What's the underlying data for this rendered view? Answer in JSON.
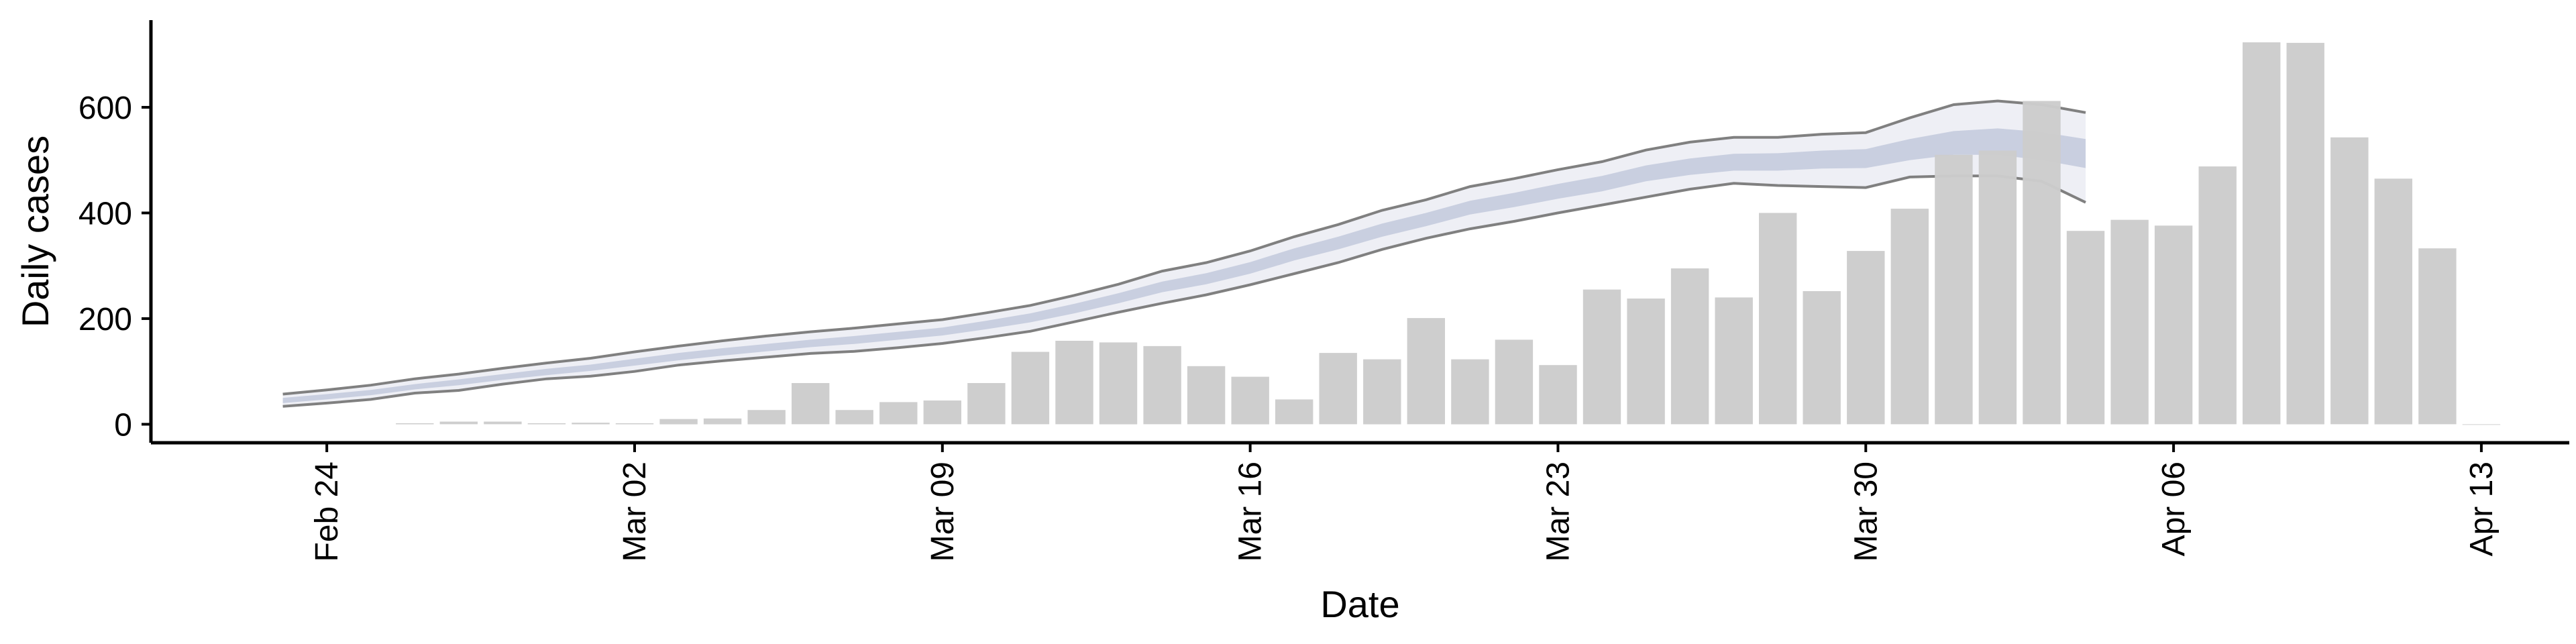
{
  "chart_data": {
    "type": "bar",
    "title": "",
    "xlabel": "Date",
    "ylabel": "Daily cases",
    "x_ticks": [
      "Feb 24",
      "Mar 02",
      "Mar 09",
      "Mar 16",
      "Mar 23",
      "Mar 30",
      "Apr 06",
      "Apr 13"
    ],
    "y_ticks": [
      0,
      200,
      400,
      600
    ],
    "xlim": [
      "2020-02-20",
      "2020-04-15"
    ],
    "ylim": [
      -35,
      765
    ],
    "grid": false,
    "legend": "none",
    "colors": {
      "bars": "#cccccc",
      "band_outer": "#eeeff5",
      "band_inner": "#c9cfe0",
      "band_edge": "#808080",
      "axis": "#000000"
    },
    "bars": {
      "name": "Daily cases",
      "dates": [
        "2020-02-26",
        "2020-02-27",
        "2020-02-28",
        "2020-02-29",
        "2020-03-01",
        "2020-03-02",
        "2020-03-03",
        "2020-03-04",
        "2020-03-05",
        "2020-03-06",
        "2020-03-07",
        "2020-03-08",
        "2020-03-09",
        "2020-03-10",
        "2020-03-11",
        "2020-03-12",
        "2020-03-13",
        "2020-03-14",
        "2020-03-15",
        "2020-03-16",
        "2020-03-17",
        "2020-03-18",
        "2020-03-19",
        "2020-03-20",
        "2020-03-21",
        "2020-03-22",
        "2020-03-23",
        "2020-03-24",
        "2020-03-25",
        "2020-03-26",
        "2020-03-27",
        "2020-03-28",
        "2020-03-29",
        "2020-03-30",
        "2020-03-31",
        "2020-04-01",
        "2020-04-02",
        "2020-04-03",
        "2020-04-04",
        "2020-04-05",
        "2020-04-06",
        "2020-04-07",
        "2020-04-08",
        "2020-04-09",
        "2020-04-10",
        "2020-04-11",
        "2020-04-12",
        "2020-04-13"
      ],
      "values": [
        2,
        5,
        5,
        2,
        3,
        2,
        10,
        11,
        27,
        78,
        27,
        42,
        45,
        78,
        137,
        158,
        155,
        148,
        110,
        90,
        47,
        135,
        123,
        201,
        123,
        160,
        112,
        255,
        238,
        295,
        240,
        400,
        252,
        328,
        408,
        510,
        518,
        612,
        366,
        387,
        376,
        488,
        723,
        722,
        543,
        465,
        333,
        0
      ]
    },
    "estimate_band": {
      "dates": [
        "2020-02-23",
        "2020-02-24",
        "2020-02-25",
        "2020-02-26",
        "2020-02-27",
        "2020-02-28",
        "2020-02-29",
        "2020-03-01",
        "2020-03-02",
        "2020-03-03",
        "2020-03-04",
        "2020-03-05",
        "2020-03-06",
        "2020-03-07",
        "2020-03-08",
        "2020-03-09",
        "2020-03-10",
        "2020-03-11",
        "2020-03-12",
        "2020-03-13",
        "2020-03-14",
        "2020-03-15",
        "2020-03-16",
        "2020-03-17",
        "2020-03-18",
        "2020-03-19",
        "2020-03-20",
        "2020-03-21",
        "2020-03-22",
        "2020-03-23",
        "2020-03-24",
        "2020-03-25",
        "2020-03-26",
        "2020-03-27",
        "2020-03-28",
        "2020-03-29",
        "2020-03-30",
        "2020-03-31",
        "2020-04-01",
        "2020-04-02",
        "2020-04-03",
        "2020-04-04"
      ],
      "upper": [
        57,
        65,
        74,
        86,
        95,
        106,
        116,
        125,
        137,
        148,
        158,
        167,
        175,
        182,
        190,
        198,
        211,
        225,
        244,
        265,
        290,
        306,
        328,
        355,
        378,
        405,
        425,
        450,
        465,
        482,
        497,
        519,
        534,
        543,
        543,
        549,
        552,
        580,
        605,
        612,
        605,
        590
      ],
      "inner_upper": [
        50,
        57,
        65,
        76,
        85,
        95,
        105,
        113,
        124,
        135,
        144,
        152,
        160,
        167,
        175,
        183,
        196,
        210,
        228,
        248,
        270,
        286,
        307,
        333,
        355,
        380,
        400,
        423,
        438,
        455,
        470,
        490,
        503,
        512,
        513,
        518,
        521,
        540,
        555,
        560,
        553,
        540
      ],
      "inner_lower": [
        40,
        47,
        55,
        66,
        74,
        84,
        93,
        101,
        111,
        121,
        130,
        138,
        146,
        152,
        160,
        168,
        180,
        193,
        210,
        229,
        250,
        265,
        285,
        310,
        331,
        355,
        375,
        397,
        411,
        427,
        441,
        460,
        472,
        480,
        480,
        484,
        485,
        500,
        510,
        510,
        500,
        485
      ],
      "lower": [
        34,
        40,
        47,
        59,
        64,
        76,
        86,
        91,
        100,
        112,
        120,
        127,
        134,
        138,
        145,
        153,
        164,
        176,
        194,
        212,
        229,
        245,
        264,
        285,
        306,
        331,
        352,
        370,
        384,
        400,
        415,
        430,
        445,
        456,
        452,
        450,
        448,
        468,
        470,
        470,
        460,
        420
      ]
    }
  }
}
